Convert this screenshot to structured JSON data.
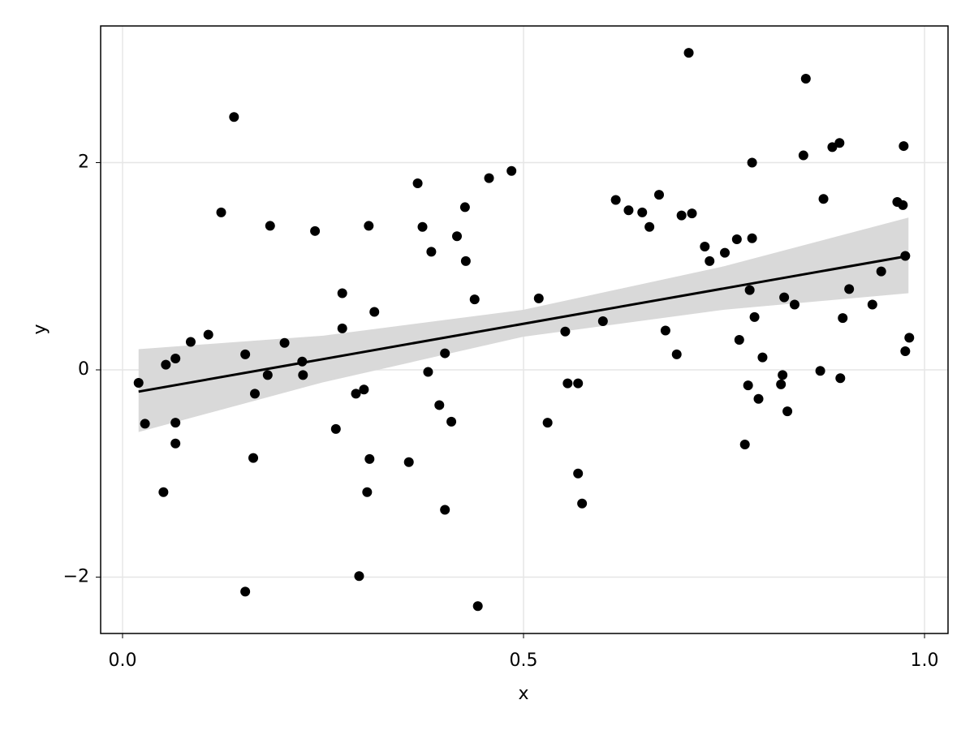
{
  "chart_data": {
    "type": "scatter",
    "xlabel": "x",
    "ylabel": "y",
    "xlim": [
      -0.0273,
      1.0293
    ],
    "ylim": [
      -2.544,
      3.319
    ],
    "xticks": [
      {
        "value": 0,
        "label": "0.0"
      },
      {
        "value": 0.5,
        "label": "0.5"
      },
      {
        "value": 1,
        "label": "1.0"
      }
    ],
    "yticks": [
      {
        "value": -2,
        "label": "−2"
      },
      0,
      2
    ],
    "grid": true,
    "color": "#000000",
    "x": [
      0.02,
      0.028,
      0.051,
      0.054,
      0.066,
      0.066,
      0.066,
      0.085,
      0.107,
      0.123,
      0.139,
      0.153,
      0.153,
      0.163,
      0.165,
      0.181,
      0.184,
      0.202,
      0.224,
      0.225,
      0.24,
      0.266,
      0.274,
      0.274,
      0.291,
      0.295,
      0.301,
      0.307,
      0.308,
      0.305,
      0.314,
      0.357,
      0.368,
      0.374,
      0.381,
      0.385,
      0.395,
      0.402,
      0.402,
      0.41,
      0.417,
      0.427,
      0.428,
      0.439,
      0.443,
      0.457,
      0.485,
      0.519,
      0.53,
      0.552,
      0.555,
      0.568,
      0.568,
      0.573,
      0.599,
      0.615,
      0.631,
      0.648,
      0.657,
      0.669,
      0.677,
      0.691,
      0.697,
      0.706,
      0.71,
      0.726,
      0.732,
      0.751,
      0.766,
      0.769,
      0.776,
      0.78,
      0.782,
      0.785,
      0.785,
      0.788,
      0.793,
      0.798,
      0.821,
      0.823,
      0.825,
      0.829,
      0.838,
      0.849,
      0.852,
      0.87,
      0.874,
      0.885,
      0.894,
      0.895,
      0.898,
      0.906,
      0.935,
      0.946,
      0.966,
      0.973,
      0.974,
      0.976,
      0.976,
      0.981
    ],
    "values": [
      -0.125,
      -0.52,
      -1.18,
      0.05,
      0.11,
      -0.51,
      -0.71,
      0.27,
      0.34,
      1.52,
      2.44,
      0.15,
      -2.14,
      -0.85,
      -0.23,
      -0.05,
      1.39,
      0.26,
      0.08,
      -0.05,
      1.34,
      -0.57,
      0.74,
      0.4,
      -0.23,
      -1.99,
      -0.19,
      1.39,
      -0.86,
      -1.18,
      0.56,
      -0.89,
      1.8,
      1.38,
      -0.02,
      1.14,
      -0.34,
      0.16,
      -1.35,
      -0.5,
      1.29,
      1.57,
      1.05,
      0.68,
      -2.28,
      1.85,
      1.92,
      0.69,
      -0.51,
      0.37,
      -0.13,
      -0.13,
      -1.0,
      -1.29,
      0.47,
      1.64,
      1.54,
      1.52,
      1.38,
      1.69,
      0.38,
      0.15,
      1.49,
      3.06,
      1.51,
      1.19,
      1.05,
      1.13,
      1.26,
      0.29,
      -0.72,
      -0.15,
      0.77,
      2.0,
      1.27,
      0.51,
      -0.28,
      0.12,
      -0.14,
      -0.05,
      0.7,
      -0.4,
      0.63,
      2.07,
      2.81,
      -0.01,
      1.65,
      2.15,
      2.19,
      -0.08,
      0.5,
      0.78,
      0.63,
      0.95,
      1.62,
      1.59,
      2.16,
      1.1,
      0.18,
      0.31
    ],
    "fit": {
      "color": "#000000",
      "x": [
        0.02,
        0.98
      ],
      "values": [
        -0.21,
        1.1
      ]
    },
    "band": {
      "color": "#d9d9d9",
      "x": [
        0.02,
        0.25,
        0.5,
        0.75,
        0.98
      ],
      "upper": [
        0.2,
        0.33,
        0.58,
        1.0,
        1.47
      ],
      "lower": [
        -0.6,
        -0.12,
        0.32,
        0.58,
        0.74
      ]
    }
  }
}
